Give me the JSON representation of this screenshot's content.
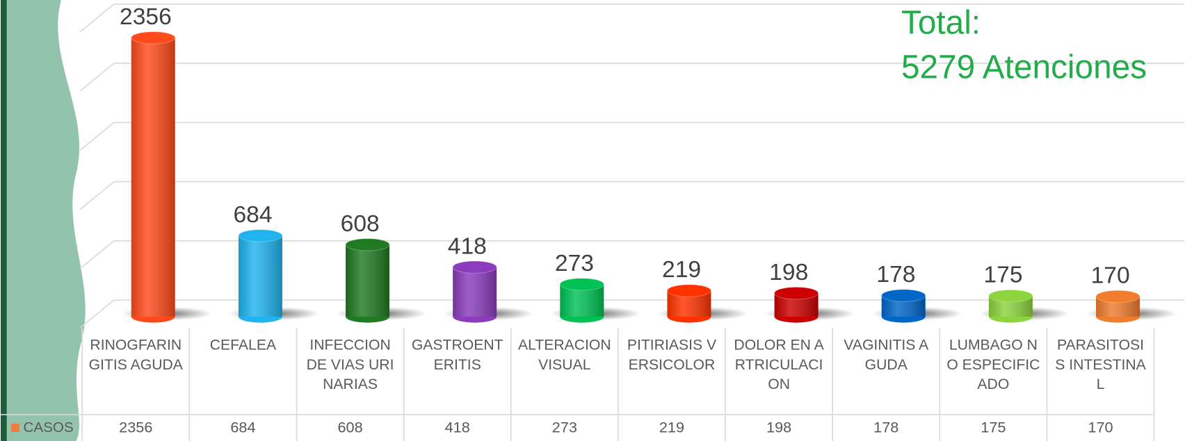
{
  "chart_data": {
    "type": "bar3d",
    "annotations": [
      "Total:",
      "5279 Atenciones"
    ],
    "categories": [
      "RINOGFARINGITIS AGUDA",
      "CEFALEA",
      "INFECCION DE VIAS URINARIAS",
      "GASTROENTERITIS",
      "ALTERACION VISUAL",
      "PITIRIASIS VERSICOLOR",
      "DOLOR EN ARTRICULACION",
      "VAGINITIS AGUDA",
      "LUMBAGO NO ESPECIFICADO",
      "PARASITOSIS INTESTINAL"
    ],
    "series": [
      {
        "name": "CASOS",
        "color": "#f07c40",
        "values": [
          2356,
          684,
          608,
          418,
          273,
          219,
          198,
          178,
          175,
          170
        ],
        "colors": [
          "#ff4a1c",
          "#1fb4ee",
          "#1f7a22",
          "#8a3cbc",
          "#00c254",
          "#ff3300",
          "#cc0000",
          "#0066c8",
          "#8ed43e",
          "#f07c2e"
        ]
      }
    ],
    "ylim": [
      0,
      2500
    ],
    "yticks": [
      0,
      500,
      1000,
      1500,
      2000,
      2500
    ],
    "grid": true
  }
}
